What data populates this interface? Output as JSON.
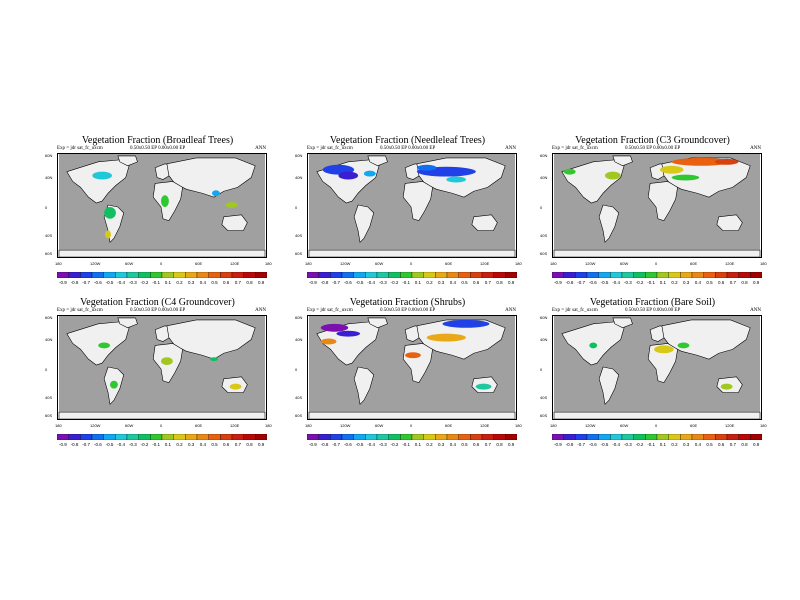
{
  "case_label": "Exp = jdr sat_fc_uxcm",
  "resolution": "0.50x0.50 EP   0.00x0.00 EP",
  "season": "ANN",
  "lat_ticks": [
    "60N",
    "40N",
    "0",
    "40S",
    "60S"
  ],
  "lon_ticks": [
    "180",
    "120W",
    "60W",
    "0",
    "60E",
    "120E",
    "180"
  ],
  "colorbar_labels": [
    "-0.9",
    "-0.8",
    "-0.7",
    "-0.6",
    "-0.5",
    "-0.4",
    "-0.3",
    "-0.2",
    "-0.1",
    "0.1",
    "0.2",
    "0.3",
    "0.4",
    "0.5",
    "0.6",
    "0.7",
    "0.8",
    "0.9"
  ],
  "colors": {
    "ocean": "#a0a0a0",
    "land": "#f0f0f0",
    "colorbar": [
      "#7b10b0",
      "#3a1fd0",
      "#2040e8",
      "#1070f0",
      "#10a8f0",
      "#20c8d8",
      "#20c8a0",
      "#10c060",
      "#30c830",
      "#a0c820",
      "#d8c818",
      "#e8a818",
      "#e88818",
      "#e86010",
      "#d84010",
      "#c82010",
      "#b80808",
      "#a00000"
    ]
  },
  "panels": [
    {
      "title": "Vegetation Fraction (Broadleaf Trees)"
    },
    {
      "title": "Vegetation Fraction (Needleleaf Trees)"
    },
    {
      "title": "Vegetation Fraction (C3 Groundcover)"
    },
    {
      "title": "Vegetation Fraction (C4 Groundcover)"
    },
    {
      "title": "Vegetation Fraction (Shrubs)"
    },
    {
      "title": "Vegetation Fraction (Bare Soil)"
    }
  ]
}
